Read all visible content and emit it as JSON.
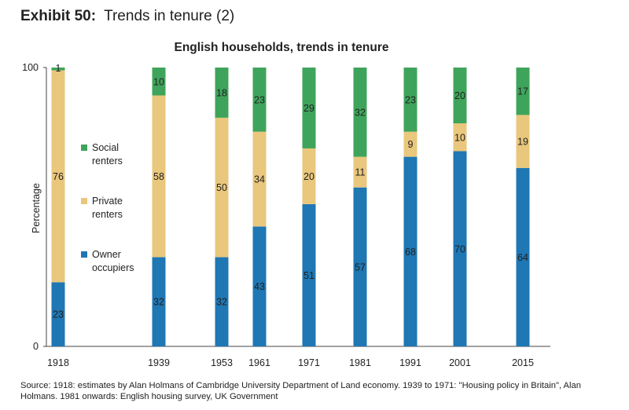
{
  "exhibit": {
    "label": "Exhibit 50:",
    "title": "Trends in tenure (2)"
  },
  "chart_data": {
    "type": "bar",
    "stacked": true,
    "title": "English households, trends in tenure",
    "xlabel": "",
    "ylabel": "Percentage",
    "ylim": [
      0,
      100
    ],
    "ytick_labels": [
      "0",
      "100"
    ],
    "categories": [
      "1918",
      "1939",
      "1953",
      "1961",
      "1971",
      "1981",
      "1991",
      "2001",
      "2015"
    ],
    "series": [
      {
        "name": "Owner occupiers",
        "color": "#1f77b4",
        "values": [
          23,
          32,
          32,
          43,
          51,
          57,
          68,
          70,
          64
        ]
      },
      {
        "name": "Private renters",
        "color": "#e9c77c",
        "values": [
          76,
          58,
          50,
          34,
          20,
          11,
          9,
          10,
          19
        ]
      },
      {
        "name": "Social renters",
        "color": "#3fa45b",
        "values": [
          1,
          10,
          18,
          23,
          29,
          32,
          23,
          20,
          17
        ]
      }
    ],
    "legend": [
      {
        "line1": "Social",
        "line2": "renters",
        "color": "#3fa45b"
      },
      {
        "line1": "Private",
        "line2": "renters",
        "color": "#e9c77c"
      },
      {
        "line1": "Owner",
        "line2": "occupiers",
        "color": "#1f77b4"
      }
    ],
    "legend_position": "left"
  },
  "source": {
    "text": "Source: 1918: estimates by Alan Holmans of Cambridge University Department of Land economy. 1939 to 1971: \"Housing policy in Britain\", Alan Holmans. 1981 onwards: English housing survey, UK Government"
  }
}
